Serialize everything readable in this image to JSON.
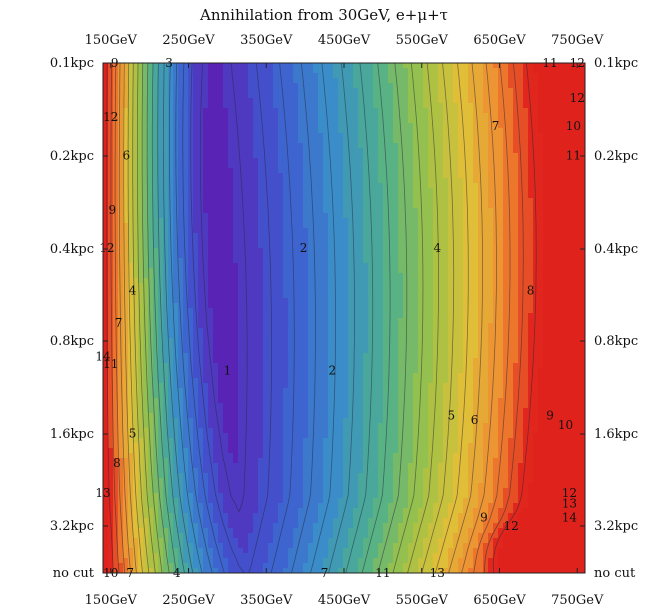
{
  "chart_data": {
    "type": "heatmap",
    "title": "Annihilation from 30GeV, e+μ+τ",
    "xlabel": "",
    "ylabel": "",
    "x_ticks": [
      "150GeV",
      "250GeV",
      "350GeV",
      "450GeV",
      "550GeV",
      "650GeV",
      "750GeV"
    ],
    "x_tick_values": [
      150,
      250,
      350,
      450,
      550,
      650,
      750
    ],
    "y_ticks": [
      "0.1kpc",
      "0.2kpc",
      "0.4kpc",
      "0.8kpc",
      "1.6kpc",
      "3.2kpc",
      "no cut"
    ],
    "xlim": [
      140,
      760
    ],
    "colormap": [
      "#5a22b4",
      "#3f5ad2",
      "#3a8fc8",
      "#4fb08c",
      "#9cc246",
      "#e0c038",
      "#ef8a30",
      "#e0221c"
    ],
    "value_range": [
      1,
      14
    ],
    "contour_labels": [
      {
        "text": "9",
        "x": 155,
        "y": "0.1kpc"
      },
      {
        "text": "3",
        "x": 225,
        "y": "0.1kpc"
      },
      {
        "text": "11",
        "x": 715,
        "y": "0.1kpc"
      },
      {
        "text": "12",
        "x": 750,
        "y": "0.1kpc"
      },
      {
        "text": "12",
        "x": 750,
        "y": "0.13kpc"
      },
      {
        "text": "12",
        "x": 150,
        "y": "0.15kpc"
      },
      {
        "text": "7",
        "x": 645,
        "y": "0.16kpc"
      },
      {
        "text": "10",
        "x": 745,
        "y": "0.16kpc"
      },
      {
        "text": "6",
        "x": 170,
        "y": "0.2kpc"
      },
      {
        "text": "11",
        "x": 745,
        "y": "0.2kpc"
      },
      {
        "text": "9",
        "x": 152,
        "y": "0.3kpc"
      },
      {
        "text": "12",
        "x": 145,
        "y": "0.4kpc"
      },
      {
        "text": "2",
        "x": 398,
        "y": "0.4kpc"
      },
      {
        "text": "4",
        "x": 570,
        "y": "0.4kpc"
      },
      {
        "text": "4",
        "x": 178,
        "y": "0.55kpc"
      },
      {
        "text": "8",
        "x": 690,
        "y": "0.55kpc"
      },
      {
        "text": "7",
        "x": 160,
        "y": "0.7kpc"
      },
      {
        "text": "14",
        "x": 140,
        "y": "0.9kpc"
      },
      {
        "text": "11",
        "x": 150,
        "y": "0.95kpc"
      },
      {
        "text": "1",
        "x": 300,
        "y": "1kpc"
      },
      {
        "text": "2",
        "x": 435,
        "y": "1kpc"
      },
      {
        "text": "5",
        "x": 588,
        "y": "1.4kpc"
      },
      {
        "text": "6",
        "x": 618,
        "y": "1.45kpc"
      },
      {
        "text": "9",
        "x": 715,
        "y": "1.4kpc"
      },
      {
        "text": "10",
        "x": 735,
        "y": "1.5kpc"
      },
      {
        "text": "5",
        "x": 178,
        "y": "1.6kpc"
      },
      {
        "text": "8",
        "x": 158,
        "y": "2kpc"
      },
      {
        "text": "13",
        "x": 140,
        "y": "2.5kpc"
      },
      {
        "text": "12",
        "x": 740,
        "y": "2.5kpc"
      },
      {
        "text": "13",
        "x": 740,
        "y": "2.7kpc"
      },
      {
        "text": "14",
        "x": 740,
        "y": "3kpc"
      },
      {
        "text": "9",
        "x": 630,
        "y": "3kpc"
      },
      {
        "text": "12",
        "x": 665,
        "y": "3.2kpc"
      },
      {
        "text": "4",
        "x": 235,
        "y": "no cut"
      },
      {
        "text": "10",
        "x": 150,
        "y": "no cut"
      },
      {
        "text": "7",
        "x": 175,
        "y": "no cut"
      },
      {
        "text": "7",
        "x": 425,
        "y": "no cut"
      },
      {
        "text": "11",
        "x": 500,
        "y": "no cut"
      },
      {
        "text": "13",
        "x": 570,
        "y": "no cut"
      }
    ]
  }
}
